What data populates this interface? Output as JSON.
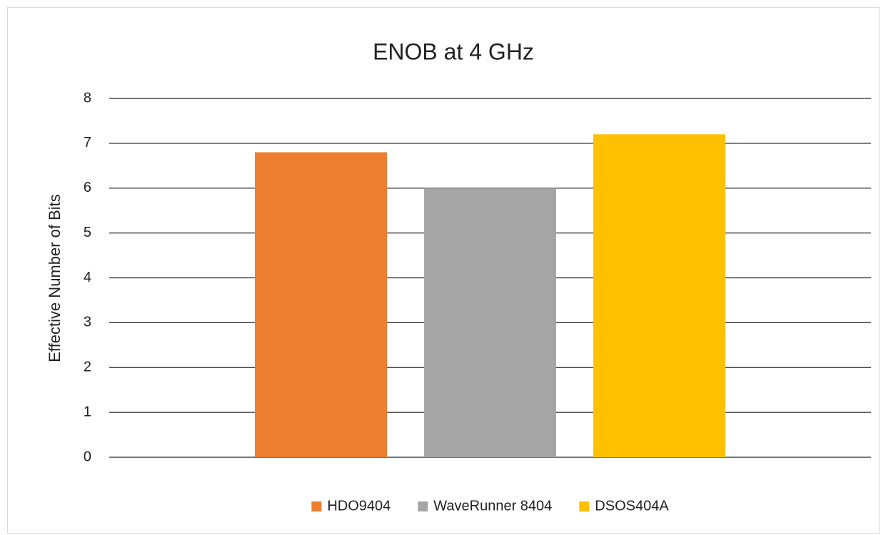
{
  "chart_data": {
    "type": "bar",
    "title": "ENOB at 4 GHz",
    "y_label": "Effective Number of Bits",
    "categories": [
      null
    ],
    "series": [
      {
        "name": "HDO9404",
        "color": "#ed7d31",
        "values": [
          6.8
        ]
      },
      {
        "name": "WaveRunner 8404",
        "color": "#a5a5a5",
        "values": [
          6.0
        ]
      },
      {
        "name": "DSOS404A",
        "color": "#ffc000",
        "values": [
          7.2
        ]
      }
    ],
    "ylim": [
      0,
      8
    ],
    "yticks": [
      0,
      1,
      2,
      3,
      4,
      5,
      6,
      7,
      8
    ],
    "grid": true,
    "legend": "bottom"
  }
}
